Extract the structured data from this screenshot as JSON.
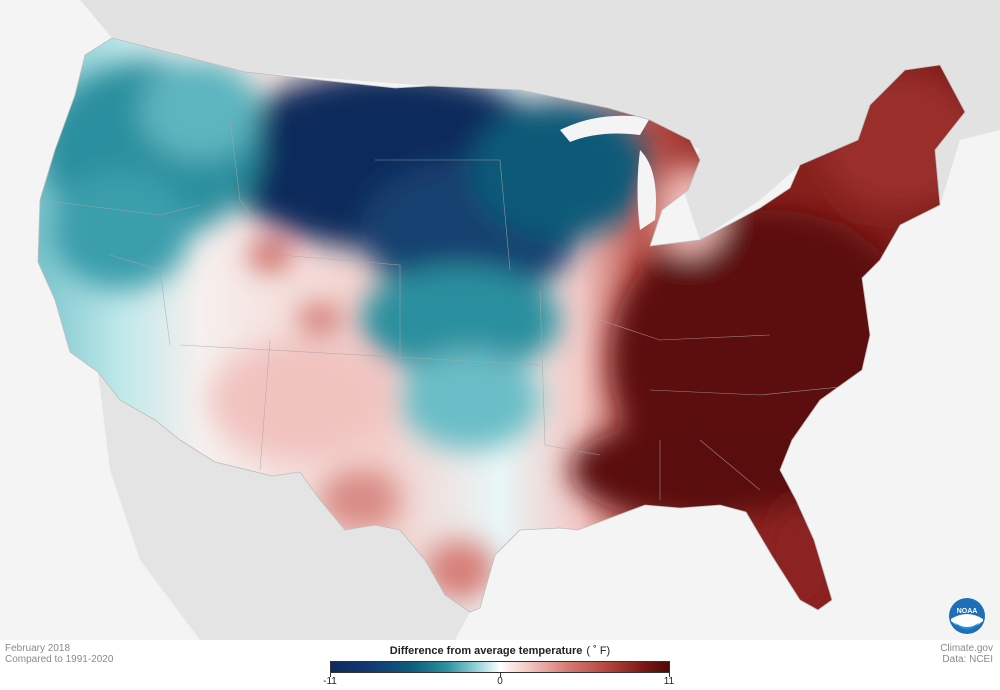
{
  "footer": {
    "left_line1": "February 2018",
    "left_line2": "Compared to 1991-2020",
    "right_line1": "Climate.gov",
    "right_line2": "Data: NCEI"
  },
  "legend": {
    "title": "Difference from average temperature",
    "unit": "( ˚ F)",
    "min_label": "-11",
    "mid_label": "0",
    "max_label": "11",
    "min_value": -11,
    "max_value": 11,
    "colors": [
      "#102a5c",
      "#0e5d7e",
      "#9fd9de",
      "#ffffff",
      "#f4c9c6",
      "#b3443d",
      "#4a0a08"
    ]
  },
  "logo": {
    "name": "noaa-logo",
    "text": "NOAA"
  },
  "map": {
    "subject": "Contiguous United States temperature anomaly",
    "pattern": {
      "north-central": "much colder than average",
      "pacific-northwest": "colder than average",
      "southwest": "near to slightly warmer than average",
      "east-and-southeast": "much warmer than average"
    }
  }
}
